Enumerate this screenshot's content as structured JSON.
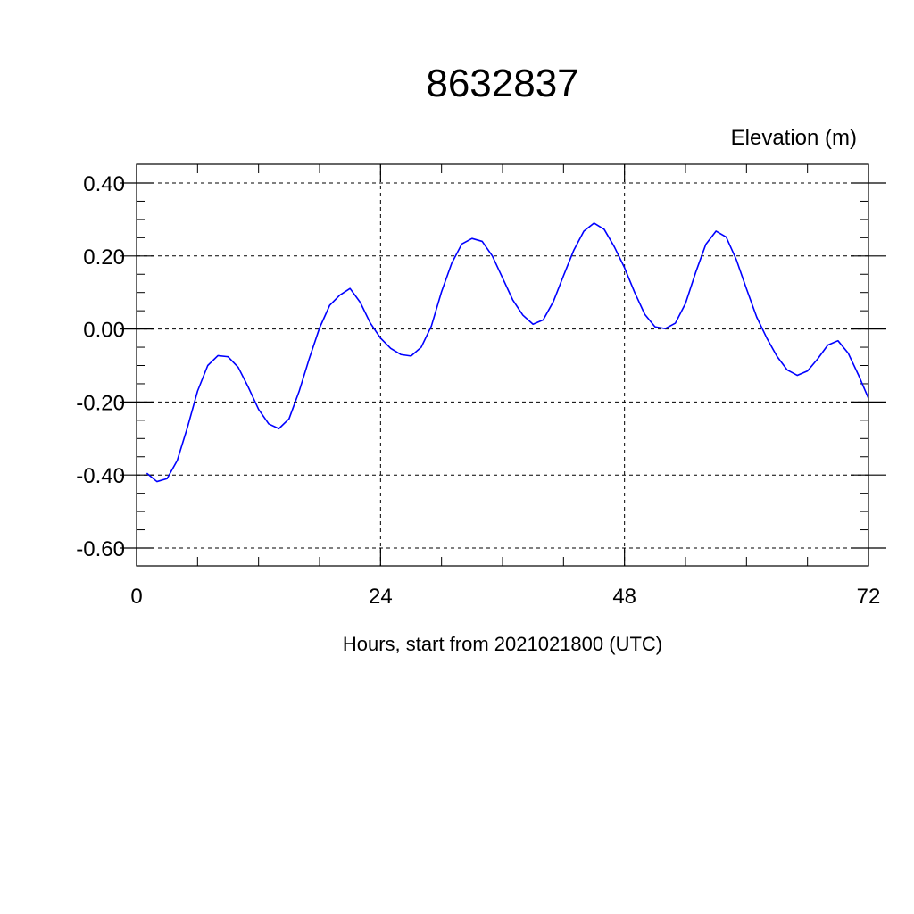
{
  "chart_data": {
    "type": "line",
    "title": "8632837",
    "ylabel": "Elevation (m)",
    "xlabel": "Hours, start from 2021021800 (UTC)",
    "xlim": [
      0,
      72
    ],
    "ylim": [
      -0.6,
      0.4
    ],
    "xticks": [
      0,
      24,
      48,
      72
    ],
    "xtick_labels": [
      "0",
      "24",
      "48",
      "72"
    ],
    "yticks": [
      0.4,
      0.2,
      0.0,
      -0.2,
      -0.4,
      -0.6
    ],
    "ytick_labels": [
      "0.40",
      "0.20",
      "0.00",
      "-0.20",
      "-0.40",
      "-0.60"
    ],
    "grid": true,
    "series": [
      {
        "color": "#0000ff",
        "x": [
          1,
          2,
          3,
          4,
          5,
          6,
          7,
          8,
          9,
          10,
          11,
          12,
          13,
          14,
          15,
          16,
          17,
          18,
          19,
          20,
          21,
          22,
          23,
          24,
          25,
          26,
          27,
          28,
          29,
          30,
          31,
          32,
          33,
          34,
          35,
          36,
          37,
          38,
          39,
          40,
          41,
          42,
          43,
          44,
          45,
          46,
          47,
          48,
          49,
          50,
          51,
          52,
          53,
          54,
          55,
          56,
          57,
          58,
          59,
          60,
          61,
          62,
          63,
          64,
          65,
          66,
          67,
          68,
          69,
          70,
          71,
          72
        ],
        "y": [
          -0.395,
          -0.418,
          -0.41,
          -0.36,
          -0.27,
          -0.17,
          -0.1,
          -0.073,
          -0.076,
          -0.105,
          -0.16,
          -0.22,
          -0.26,
          -0.273,
          -0.246,
          -0.17,
          -0.08,
          0.003,
          0.065,
          0.093,
          0.111,
          0.073,
          0.016,
          -0.025,
          -0.053,
          -0.07,
          -0.074,
          -0.05,
          0.008,
          0.102,
          0.18,
          0.233,
          0.248,
          0.24,
          0.2,
          0.14,
          0.08,
          0.038,
          0.013,
          0.025,
          0.075,
          0.146,
          0.215,
          0.268,
          0.29,
          0.273,
          0.225,
          0.168,
          0.1,
          0.04,
          0.006,
          0.001,
          0.016,
          0.07,
          0.155,
          0.232,
          0.268,
          0.252,
          0.19,
          0.11,
          0.033,
          -0.025,
          -0.075,
          -0.112,
          -0.127,
          -0.115,
          -0.082,
          -0.044,
          -0.032,
          -0.066,
          -0.125,
          -0.19
        ]
      }
    ]
  }
}
